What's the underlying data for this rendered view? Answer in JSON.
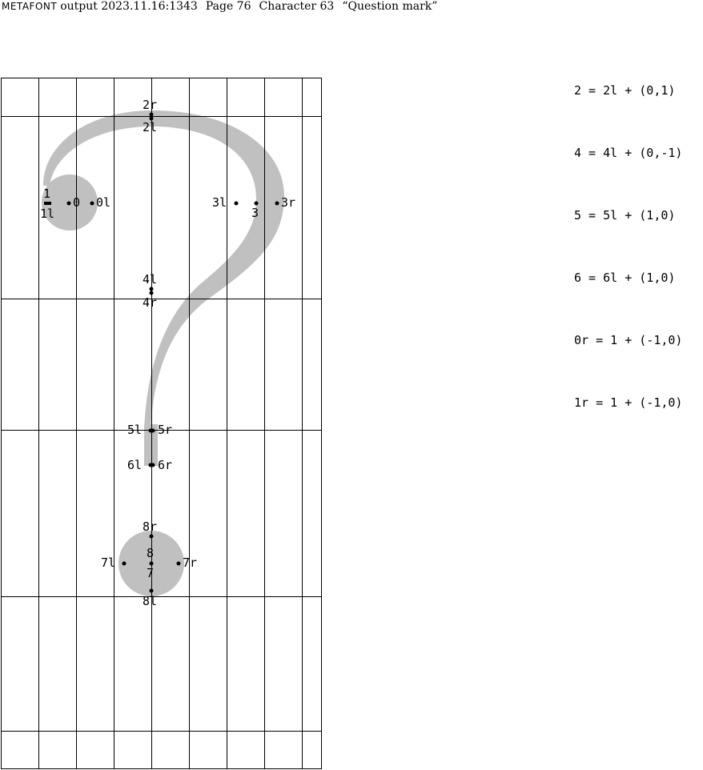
{
  "header": {
    "program": "METAFONT",
    "output": "output 2023.11.16:1343",
    "page": "Page 76",
    "character": "Character 63",
    "name": "“Question mark”"
  },
  "equations": [
    "2 = 2l + (0,1)",
    "4 = 4l + (0,-1)",
    "5 = 5l + (1,0)",
    "6 = 6l + (1,0)",
    "0r = 1 + (-1,0)",
    "1r = 1 + (-1,0)"
  ],
  "points": [
    {
      "id": "2r",
      "label": "2r"
    },
    {
      "id": "2l",
      "label": "2l"
    },
    {
      "id": "1",
      "label": "1"
    },
    {
      "id": "1l",
      "label": "1l"
    },
    {
      "id": "0",
      "label": "0"
    },
    {
      "id": "0l",
      "label": "0l"
    },
    {
      "id": "3l",
      "label": "3l"
    },
    {
      "id": "3",
      "label": "3"
    },
    {
      "id": "3r",
      "label": "3r"
    },
    {
      "id": "4l",
      "label": "4l"
    },
    {
      "id": "4r",
      "label": "4r"
    },
    {
      "id": "5l",
      "label": "5l"
    },
    {
      "id": "5r",
      "label": "5r"
    },
    {
      "id": "6l",
      "label": "6l"
    },
    {
      "id": "6r",
      "label": "6r"
    },
    {
      "id": "8r",
      "label": "8r"
    },
    {
      "id": "8",
      "label": "8"
    },
    {
      "id": "7l",
      "label": "7l"
    },
    {
      "id": "7",
      "label": "7"
    },
    {
      "id": "7r",
      "label": "7r"
    },
    {
      "id": "8l",
      "label": "8l"
    }
  ],
  "colors": {
    "glyph_fill": "#c0c0c0",
    "grid": "#000000",
    "point": "#000000"
  }
}
